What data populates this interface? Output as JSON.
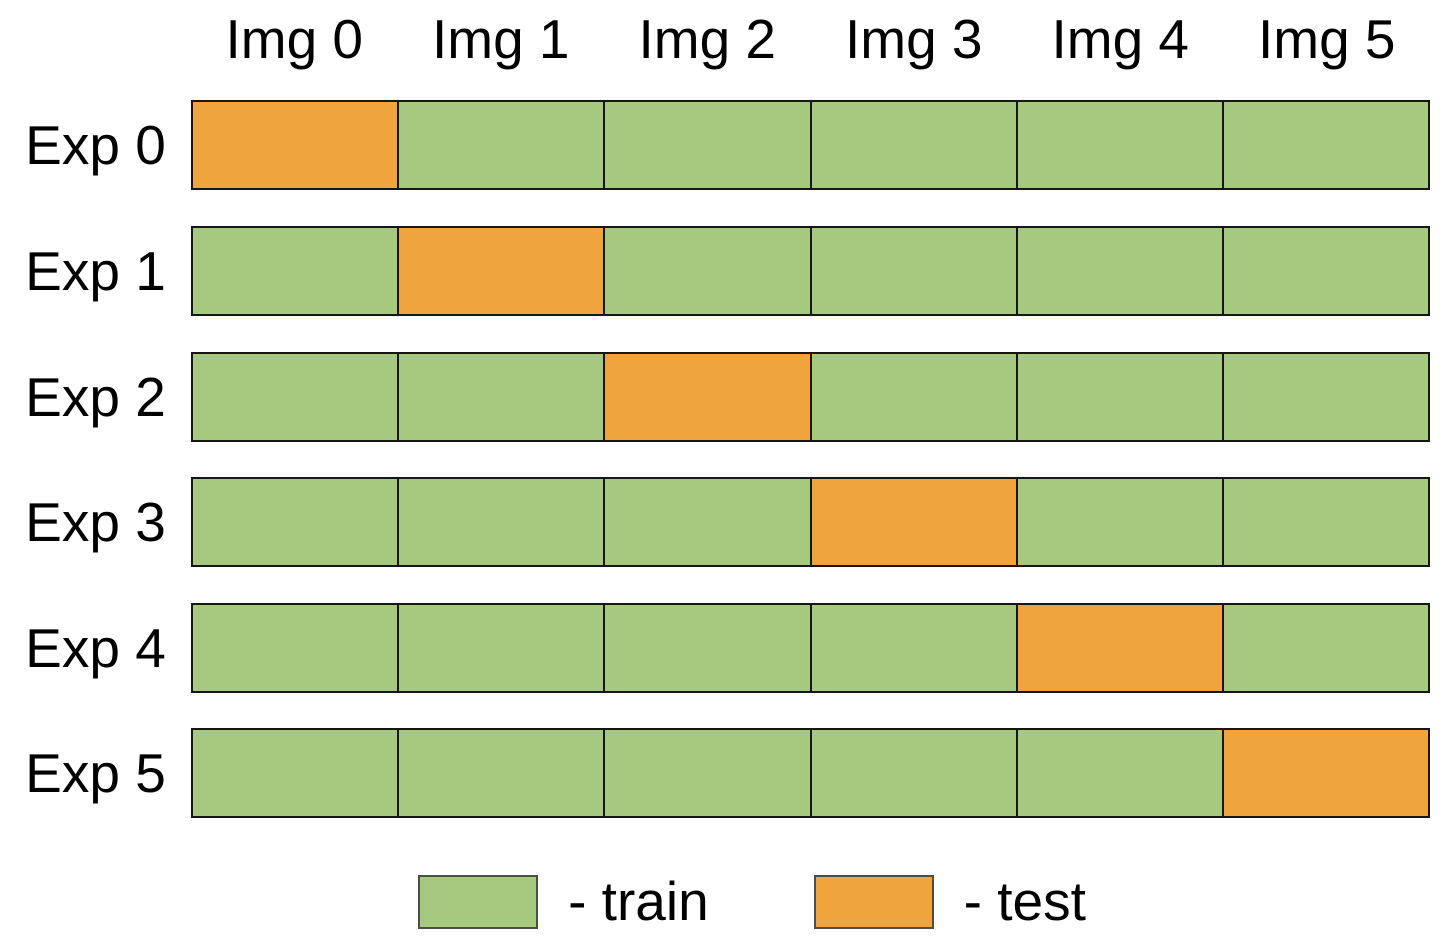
{
  "matrix": {
    "column_headers": [
      "Img 0",
      "Img 1",
      "Img 2",
      "Img 3",
      "Img 4",
      "Img 5"
    ],
    "rows": [
      {
        "label": "Exp 0",
        "cells": [
          "test",
          "train",
          "train",
          "train",
          "train",
          "train"
        ]
      },
      {
        "label": "Exp 1",
        "cells": [
          "train",
          "test",
          "train",
          "train",
          "train",
          "train"
        ]
      },
      {
        "label": "Exp 2",
        "cells": [
          "train",
          "train",
          "test",
          "train",
          "train",
          "train"
        ]
      },
      {
        "label": "Exp 3",
        "cells": [
          "train",
          "train",
          "train",
          "test",
          "train",
          "train"
        ]
      },
      {
        "label": "Exp 4",
        "cells": [
          "train",
          "train",
          "train",
          "train",
          "test",
          "train"
        ]
      },
      {
        "label": "Exp 5",
        "cells": [
          "train",
          "train",
          "train",
          "train",
          "train",
          "test"
        ]
      }
    ]
  },
  "legend": {
    "items": [
      {
        "label": "- train",
        "key": "train"
      },
      {
        "label": "- test",
        "key": "test"
      }
    ]
  },
  "colors": {
    "train": "#A6C87F",
    "test": "#F0A43E",
    "cell_border": "#161616",
    "legend_border": "#4C4C4C",
    "text": "#000000",
    "background": "#FFFFFF"
  }
}
